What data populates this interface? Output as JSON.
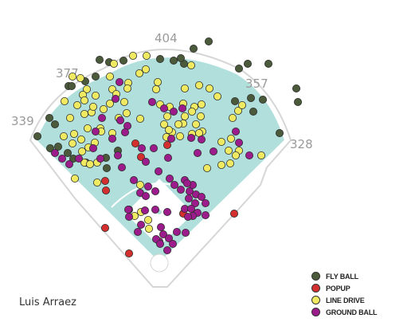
{
  "player_name": "Luis Arraez",
  "colors": {
    "field": "#b1e0dc",
    "field_border": "#ffffff",
    "wall": "#c8c8c8",
    "fly_ball": "#4b5a3a",
    "popup": "#d32f2f",
    "line_drive": "#f0ea63",
    "ground_ball": "#9c1c8c"
  },
  "chart_data": {
    "type": "scatter",
    "title": "",
    "fence_distances": [
      {
        "label": "339",
        "field": "left-field-line"
      },
      {
        "label": "377",
        "field": "left-center"
      },
      {
        "label": "404",
        "field": "center"
      },
      {
        "label": "357",
        "field": "right-center"
      },
      {
        "label": "328",
        "field": "right-field-line"
      }
    ],
    "legend": [
      {
        "key": "fly_ball",
        "label": "FLY BALL"
      },
      {
        "key": "popup",
        "label": "POPUP"
      },
      {
        "key": "line_drive",
        "label": "LINE DRIVE"
      },
      {
        "key": "ground_ball",
        "label": "GROUND BALL"
      }
    ],
    "legend_position": "bottom-right",
    "series": {
      "fly_ball": [
        [
          262,
          52
        ],
        [
          243,
          61
        ],
        [
          125,
          75
        ],
        [
          155,
          76
        ],
        [
          201,
          74
        ],
        [
          218,
          76
        ],
        [
          231,
          80
        ],
        [
          311,
          80
        ],
        [
          337,
          80
        ],
        [
          300,
          86
        ],
        [
          120,
          96
        ],
        [
          107,
          102
        ],
        [
          86,
          108
        ],
        [
          372,
          111
        ],
        [
          330,
          125
        ],
        [
          374,
          128
        ],
        [
          315,
          123
        ],
        [
          295,
          127
        ],
        [
          318,
          140
        ],
        [
          62,
          148
        ],
        [
          69,
          156
        ],
        [
          351,
          167
        ],
        [
          47,
          171
        ],
        [
          63,
          186
        ],
        [
          73,
          184
        ],
        [
          85,
          192
        ],
        [
          92,
          199
        ],
        [
          108,
          204
        ],
        [
          133,
          198
        ],
        [
          148,
          189
        ],
        [
          134,
          211
        ],
        [
          90,
          108
        ],
        [
          137,
          78
        ],
        [
          227,
          73
        ]
      ],
      "popup": [
        [
          170,
          180
        ],
        [
          210,
          182
        ],
        [
          177,
          197
        ],
        [
          132,
          227
        ],
        [
          133,
          239
        ],
        [
          230,
          268
        ],
        [
          294,
          268
        ],
        [
          132,
          286
        ],
        [
          162,
          318
        ]
      ],
      "line_drive": [
        [
          167,
          70
        ],
        [
          184,
          70
        ],
        [
          143,
          80
        ],
        [
          240,
          82
        ],
        [
          183,
          87
        ],
        [
          175,
          92
        ],
        [
          101,
          98
        ],
        [
          138,
          96
        ],
        [
          91,
          96
        ],
        [
          161,
          104
        ],
        [
          198,
          103
        ],
        [
          160,
          111
        ],
        [
          141,
          112
        ],
        [
          109,
          112
        ],
        [
          250,
          107
        ],
        [
          196,
          112
        ],
        [
          232,
          111
        ],
        [
          263,
          111
        ],
        [
          146,
          118
        ],
        [
          104,
          119
        ],
        [
          81,
          127
        ],
        [
          120,
          120
        ],
        [
          106,
          126
        ],
        [
          138,
          130
        ],
        [
          156,
          128
        ],
        [
          201,
          131
        ],
        [
          213,
          134
        ],
        [
          230,
          130
        ],
        [
          244,
          134
        ],
        [
          253,
          131
        ],
        [
          273,
          121
        ],
        [
          97,
          132
        ],
        [
          106,
          143
        ],
        [
          130,
          137
        ],
        [
          115,
          141
        ],
        [
          159,
          142
        ],
        [
          149,
          148
        ],
        [
          176,
          149
        ],
        [
          210,
          146
        ],
        [
          232,
          146
        ],
        [
          252,
          146
        ],
        [
          230,
          155
        ],
        [
          110,
          161
        ],
        [
          93,
          168
        ],
        [
          126,
          161
        ],
        [
          141,
          167
        ],
        [
          206,
          156
        ],
        [
          224,
          156
        ],
        [
          246,
          156
        ],
        [
          80,
          171
        ],
        [
          102,
          175
        ],
        [
          119,
          179
        ],
        [
          127,
          165
        ],
        [
          111,
          185
        ],
        [
          103,
          190
        ],
        [
          106,
          204
        ],
        [
          113,
          206
        ],
        [
          122,
          204
        ],
        [
          216,
          166
        ],
        [
          278,
          178
        ],
        [
          290,
          174
        ],
        [
          300,
          189
        ],
        [
          296,
          195
        ],
        [
          289,
          205
        ],
        [
          254,
          165
        ],
        [
          241,
          168
        ],
        [
          299,
          139
        ],
        [
          292,
          148
        ],
        [
          304,
          132
        ],
        [
          260,
          211
        ],
        [
          287,
          189
        ],
        [
          278,
          207
        ],
        [
          328,
          195
        ],
        [
          94,
          224
        ],
        [
          122,
          229
        ],
        [
          176,
          232
        ],
        [
          177,
          266
        ],
        [
          169,
          271
        ],
        [
          186,
          276
        ],
        [
          187,
          287
        ],
        [
          209,
          172
        ],
        [
          212,
          163
        ],
        [
          241,
          140
        ],
        [
          226,
          171
        ],
        [
          250,
          167
        ],
        [
          91,
          180
        ],
        [
          117,
          134
        ],
        [
          88,
          148
        ]
      ],
      "ground_ball": [
        [
          150,
          103
        ],
        [
          145,
          124
        ],
        [
          191,
          128
        ],
        [
          206,
          136
        ],
        [
          218,
          140
        ],
        [
          229,
          136
        ],
        [
          128,
          148
        ],
        [
          151,
          151
        ],
        [
          160,
          158
        ],
        [
          157,
          166
        ],
        [
          141,
          174
        ],
        [
          120,
          165
        ],
        [
          69,
          192
        ],
        [
          78,
          199
        ],
        [
          87,
          206
        ],
        [
          99,
          199
        ],
        [
          126,
          199
        ],
        [
          148,
          195
        ],
        [
          117,
          186
        ],
        [
          153,
          210
        ],
        [
          193,
          186
        ],
        [
          178,
          186
        ],
        [
          215,
          174
        ],
        [
          183,
          203
        ],
        [
          211,
          198
        ],
        [
          248,
          192
        ],
        [
          268,
          190
        ],
        [
          313,
          195
        ],
        [
          300,
          179
        ],
        [
          296,
          165
        ],
        [
          253,
          175
        ],
        [
          240,
          173
        ],
        [
          199,
          215
        ],
        [
          213,
          224
        ],
        [
          168,
          226
        ],
        [
          186,
          234
        ],
        [
          176,
          242
        ],
        [
          195,
          240
        ],
        [
          183,
          246
        ],
        [
          219,
          232
        ],
        [
          232,
          226
        ],
        [
          227,
          238
        ],
        [
          238,
          240
        ],
        [
          246,
          244
        ],
        [
          253,
          247
        ],
        [
          237,
          249
        ],
        [
          245,
          255
        ],
        [
          258,
          255
        ],
        [
          232,
          262
        ],
        [
          240,
          262
        ],
        [
          248,
          267
        ],
        [
          258,
          270
        ],
        [
          242,
          271
        ],
        [
          236,
          272
        ],
        [
          162,
          263
        ],
        [
          182,
          264
        ],
        [
          202,
          285
        ],
        [
          205,
          294
        ],
        [
          200,
          303
        ],
        [
          212,
          299
        ],
        [
          222,
          291
        ],
        [
          233,
          292
        ],
        [
          210,
          314
        ],
        [
          196,
          300
        ],
        [
          177,
          282
        ],
        [
          162,
          272
        ],
        [
          173,
          291
        ],
        [
          210,
          266
        ],
        [
          201,
          306
        ],
        [
          217,
          306
        ],
        [
          195,
          263
        ],
        [
          242,
          232
        ],
        [
          235,
          230
        ],
        [
          161,
          263
        ]
      ]
    }
  }
}
